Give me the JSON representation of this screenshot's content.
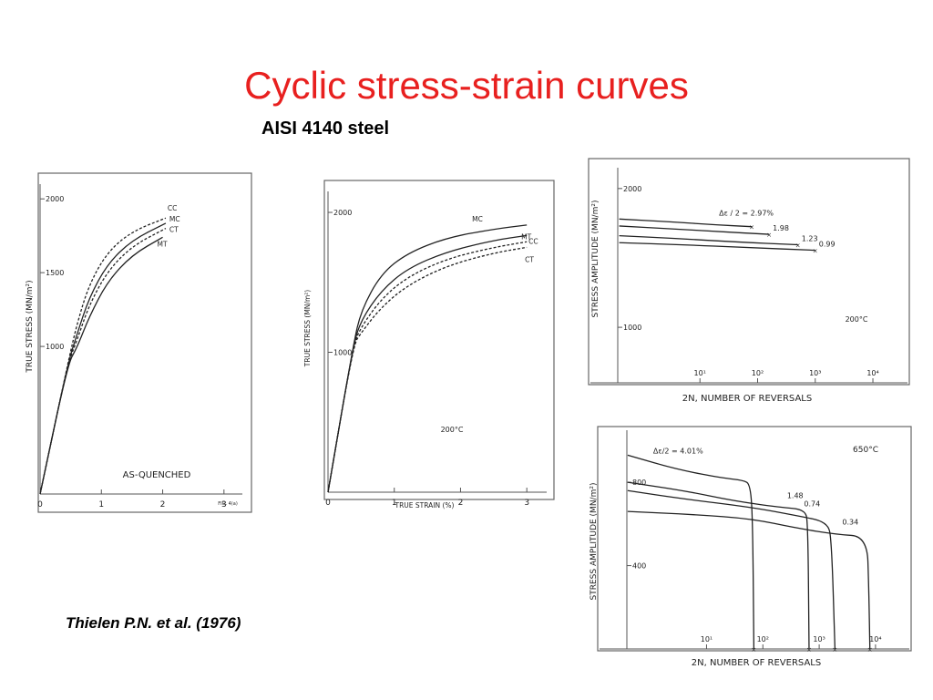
{
  "slide": {
    "title": "Cyclic stress-strain curves",
    "subtitle": "AISI 4140 steel",
    "citation": "Thielen P.N. et al. (1976)"
  },
  "colors": {
    "title": "#e8201f",
    "ink": "#222222"
  },
  "chart_data": [
    {
      "type": "line",
      "panel": "as-quenched",
      "ylabel": "TRUE STRESS (MN/m²)",
      "annotation": "AS-QUENCHED",
      "fig_note": "FIG. 4(a)",
      "xlim": [
        0,
        3.3
      ],
      "ylim": [
        0,
        2100
      ],
      "x_ticks": [
        "0",
        "1",
        "2",
        "3"
      ],
      "x_tick_values": [
        0,
        1,
        2,
        3
      ],
      "y_ticks": [
        "1000",
        "1500",
        "2000"
      ],
      "y_tick_values": [
        1000,
        1500,
        2000
      ],
      "series": [
        {
          "name": "CC",
          "dashed": true,
          "points": [
            [
              0,
              0
            ],
            [
              0.45,
              880
            ],
            [
              0.6,
              1150
            ],
            [
              0.8,
              1420
            ],
            [
              1.1,
              1640
            ],
            [
              1.5,
              1780
            ],
            [
              2.05,
              1870
            ]
          ]
        },
        {
          "name": "MC",
          "dashed": false,
          "points": [
            [
              0,
              0
            ],
            [
              0.45,
              880
            ],
            [
              0.6,
              1080
            ],
            [
              0.8,
              1330
            ],
            [
              1.1,
              1560
            ],
            [
              1.5,
              1720
            ],
            [
              2.05,
              1835
            ]
          ]
        },
        {
          "name": "CT",
          "dashed": true,
          "points": [
            [
              0,
              0
            ],
            [
              0.45,
              880
            ],
            [
              0.6,
              1040
            ],
            [
              0.8,
              1280
            ],
            [
              1.1,
              1510
            ],
            [
              1.5,
              1680
            ],
            [
              2.05,
              1800
            ]
          ]
        },
        {
          "name": "MT",
          "dashed": false,
          "points": [
            [
              0,
              0
            ],
            [
              0.45,
              880
            ],
            [
              0.6,
              990
            ],
            [
              0.8,
              1200
            ],
            [
              1.1,
              1440
            ],
            [
              1.5,
              1620
            ],
            [
              2.0,
              1740
            ]
          ]
        }
      ]
    },
    {
      "type": "line",
      "panel": "200C-strain",
      "xlabel": "TRUE STRAIN (%)",
      "ylabel": "TRUE STRESS (MN/m²)",
      "annotation": "200°C",
      "xlim": [
        0,
        3.3
      ],
      "ylim": [
        0,
        2150
      ],
      "x_ticks": [
        "0",
        "1",
        "2",
        "3"
      ],
      "x_tick_values": [
        0,
        1,
        2,
        3
      ],
      "y_ticks": [
        "1000",
        "2000"
      ],
      "y_tick_values": [
        1000,
        2000
      ],
      "series": [
        {
          "name": "MC",
          "dashed": false,
          "points": [
            [
              0,
              0
            ],
            [
              0.38,
              1050
            ],
            [
              0.5,
              1300
            ],
            [
              0.8,
              1560
            ],
            [
              1.2,
              1710
            ],
            [
              1.8,
              1820
            ],
            [
              2.5,
              1880
            ],
            [
              3.0,
              1910
            ]
          ]
        },
        {
          "name": "MT",
          "dashed": false,
          "points": [
            [
              0,
              0
            ],
            [
              0.38,
              1050
            ],
            [
              0.5,
              1230
            ],
            [
              0.8,
              1440
            ],
            [
              1.2,
              1600
            ],
            [
              1.8,
              1720
            ],
            [
              2.5,
              1800
            ],
            [
              3.0,
              1835
            ]
          ]
        },
        {
          "name": "CC",
          "dashed": true,
          "points": [
            [
              0,
              0
            ],
            [
              0.38,
              1050
            ],
            [
              0.5,
              1180
            ],
            [
              0.8,
              1380
            ],
            [
              1.2,
              1540
            ],
            [
              1.8,
              1670
            ],
            [
              2.5,
              1750
            ],
            [
              3.0,
              1790
            ]
          ]
        },
        {
          "name": "CT",
          "dashed": true,
          "points": [
            [
              0,
              0
            ],
            [
              0.38,
              1050
            ],
            [
              0.5,
              1140
            ],
            [
              0.8,
              1320
            ],
            [
              1.2,
              1480
            ],
            [
              1.8,
              1620
            ],
            [
              2.5,
              1710
            ],
            [
              3.0,
              1750
            ]
          ]
        }
      ]
    },
    {
      "type": "line",
      "panel": "200C-amplitude",
      "xlabel": "2N, NUMBER OF REVERSALS",
      "ylabel": "STRESS AMPLITUDE (MN/m²)",
      "annotation": "200°C",
      "x_log": true,
      "xlim_log10": [
        -0.9,
        4.6
      ],
      "ylim": [
        600,
        2150
      ],
      "x_ticks": [
        "10¹",
        "10²",
        "10³",
        "10⁴"
      ],
      "x_tick_values": [
        1,
        2,
        3,
        4
      ],
      "y_ticks": [
        "1000",
        "2000"
      ],
      "y_tick_values": [
        1000,
        2000
      ],
      "legend_prefix": "Δε / 2 =",
      "series": [
        {
          "name": "2.97%",
          "points": [
            [
              -0.4,
              1780
            ],
            [
              0.5,
              1760
            ],
            [
              1.2,
              1740
            ],
            [
              1.9,
              1725
            ]
          ]
        },
        {
          "name": "1.98",
          "points": [
            [
              -0.4,
              1730
            ],
            [
              0.5,
              1710
            ],
            [
              1.3,
              1690
            ],
            [
              2.2,
              1670
            ]
          ]
        },
        {
          "name": "1.23",
          "points": [
            [
              -0.4,
              1660
            ],
            [
              0.6,
              1640
            ],
            [
              1.6,
              1615
            ],
            [
              2.7,
              1595
            ]
          ]
        },
        {
          "name": "0.99",
          "points": [
            [
              -0.4,
              1610
            ],
            [
              0.7,
              1595
            ],
            [
              1.8,
              1575
            ],
            [
              3.0,
              1555
            ]
          ]
        }
      ]
    },
    {
      "type": "line",
      "panel": "650C-amplitude",
      "xlabel": "2N, NUMBER OF REVERSALS",
      "ylabel": "STRESS AMPLITUDE (MN/m²)",
      "annotation": "650°C",
      "x_log": true,
      "xlim_log10": [
        -0.9,
        4.6
      ],
      "ylim": [
        0,
        1050
      ],
      "x_ticks": [
        "10¹",
        "10²",
        "10³",
        "10⁴"
      ],
      "x_tick_values": [
        1,
        2,
        3,
        4
      ],
      "y_ticks": [
        "400",
        "800"
      ],
      "y_tick_values": [
        400,
        800
      ],
      "legend_prefix": "Δε/2 =",
      "series": [
        {
          "name": "4.01%",
          "points": [
            [
              -0.4,
              930
            ],
            [
              0.5,
              860
            ],
            [
              1.3,
              820
            ],
            [
              1.65,
              810
            ],
            [
              1.78,
              790
            ],
            [
              1.82,
              600
            ],
            [
              1.84,
              0
            ]
          ]
        },
        {
          "name": "1.48",
          "points": [
            [
              -0.4,
              800
            ],
            [
              0.6,
              760
            ],
            [
              1.5,
              710
            ],
            [
              2.3,
              680
            ],
            [
              2.75,
              670
            ],
            [
              2.8,
              600
            ],
            [
              2.82,
              0
            ]
          ]
        },
        {
          "name": "0.74",
          "points": [
            [
              -0.4,
              760
            ],
            [
              0.6,
              720
            ],
            [
              1.8,
              680
            ],
            [
              2.6,
              640
            ],
            [
              3.15,
              610
            ],
            [
              3.22,
              520
            ],
            [
              3.28,
              0
            ]
          ]
        },
        {
          "name": "0.34",
          "points": [
            [
              -0.4,
              660
            ],
            [
              0.8,
              645
            ],
            [
              1.8,
              625
            ],
            [
              2.6,
              580
            ],
            [
              3.3,
              550
            ],
            [
              3.85,
              540
            ],
            [
              3.88,
              300
            ],
            [
              3.9,
              0
            ]
          ]
        }
      ]
    }
  ]
}
